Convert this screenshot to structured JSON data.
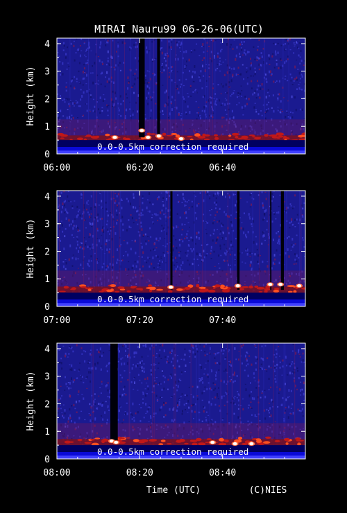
{
  "title": "MIRAI Nauru99 06-26-06(UTC)",
  "xlabel": "Time (UTC)",
  "credit": "(C)NIES",
  "colors": {
    "background": "#000000",
    "noise_low": "#1a1a90",
    "noise_high": "#3a3acc",
    "haze": "#7a1a55",
    "boundary_layer": "#c01818",
    "cloud_top": "#ffffff",
    "surface_band": "#0a0ad8"
  },
  "chart_data": [
    {
      "type": "heatmap",
      "ylabel": "Height (km)",
      "ylim": [
        0,
        4.2
      ],
      "yticks": [
        0,
        1,
        2,
        3,
        4
      ],
      "xlim_minutes": [
        360,
        420
      ],
      "xticks": [
        "06:00",
        "06:20",
        "06:40"
      ],
      "xtick_minutes": [
        360,
        380,
        400
      ],
      "annotation": "0.0-0.5km correction required",
      "boundary_layer_km": 0.55,
      "attenuation_columns_min": [
        [
          379.8,
          381.2
        ],
        [
          384.2,
          384.9
        ]
      ],
      "cloud_returns": [
        {
          "t": 380.5,
          "h": 0.85
        },
        {
          "t": 384.6,
          "h": 0.65
        },
        {
          "t": 382.0,
          "h": 0.6
        },
        {
          "t": 374.0,
          "h": 0.6
        },
        {
          "t": 390.0,
          "h": 0.55
        }
      ]
    },
    {
      "type": "heatmap",
      "ylabel": "Height (km)",
      "ylim": [
        0,
        4.2
      ],
      "yticks": [
        0,
        1,
        2,
        3,
        4
      ],
      "xlim_minutes": [
        420,
        480
      ],
      "xticks": [
        "07:00",
        "07:20",
        "07:40"
      ],
      "xtick_minutes": [
        420,
        440,
        460
      ],
      "annotation": "0.0-0.5km correction required",
      "boundary_layer_km": 0.6,
      "attenuation_columns_min": [
        [
          447.4,
          447.9
        ],
        [
          463.5,
          464.1
        ],
        [
          471.5,
          471.8
        ],
        [
          474.1,
          474.8
        ]
      ],
      "cloud_returns": [
        {
          "t": 447.5,
          "h": 0.7
        },
        {
          "t": 463.7,
          "h": 0.75
        },
        {
          "t": 471.5,
          "h": 0.8
        },
        {
          "t": 474.0,
          "h": 0.8
        },
        {
          "t": 478.5,
          "h": 0.75
        }
      ]
    },
    {
      "type": "heatmap",
      "ylabel": "Height (km)",
      "ylim": [
        0,
        4.2
      ],
      "yticks": [
        0,
        1,
        2,
        3,
        4
      ],
      "xlim_minutes": [
        480,
        540
      ],
      "xticks": [
        "08:00",
        "08:20",
        "08:40"
      ],
      "xtick_minutes": [
        480,
        500,
        520
      ],
      "annotation": "0.0-0.5km correction required",
      "boundary_layer_km": 0.6,
      "attenuation_columns_min": [
        [
          492.9,
          494.7
        ]
      ],
      "cloud_returns": [
        {
          "t": 493.2,
          "h": 0.65
        },
        {
          "t": 494.3,
          "h": 0.6
        },
        {
          "t": 517.6,
          "h": 0.6
        },
        {
          "t": 523.0,
          "h": 0.55
        },
        {
          "t": 527.0,
          "h": 0.55
        }
      ]
    }
  ]
}
